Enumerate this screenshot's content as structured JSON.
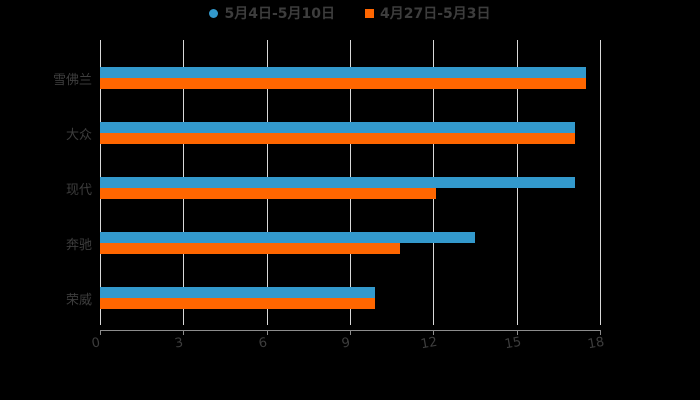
{
  "chart_data": {
    "type": "bar",
    "orientation": "horizontal",
    "title": "",
    "xlabel": "",
    "ylabel": "",
    "categories": [
      "雪佛兰",
      "大众",
      "现代",
      "奔驰",
      "荣威"
    ],
    "series": [
      {
        "name": "5月4日-5月10日",
        "color": "#3399cc",
        "values": [
          17.5,
          17.1,
          17.1,
          13.5,
          9.9
        ]
      },
      {
        "name": "4月27日-5月3日",
        "color": "#ff6600",
        "values": [
          17.5,
          17.1,
          12.1,
          10.8,
          9.9
        ]
      }
    ],
    "xlim": [
      0,
      18
    ],
    "xticks": [
      "0",
      "3",
      "6",
      "9",
      "12",
      "15",
      "18"
    ],
    "grid": true,
    "legend_position": "top"
  },
  "legend": {
    "series_1": "5月4日-5月10日",
    "series_2": "4月27日-5月3日"
  },
  "colors": {
    "series_1": "#3399cc",
    "series_2": "#ff6600",
    "background": "#000000"
  }
}
